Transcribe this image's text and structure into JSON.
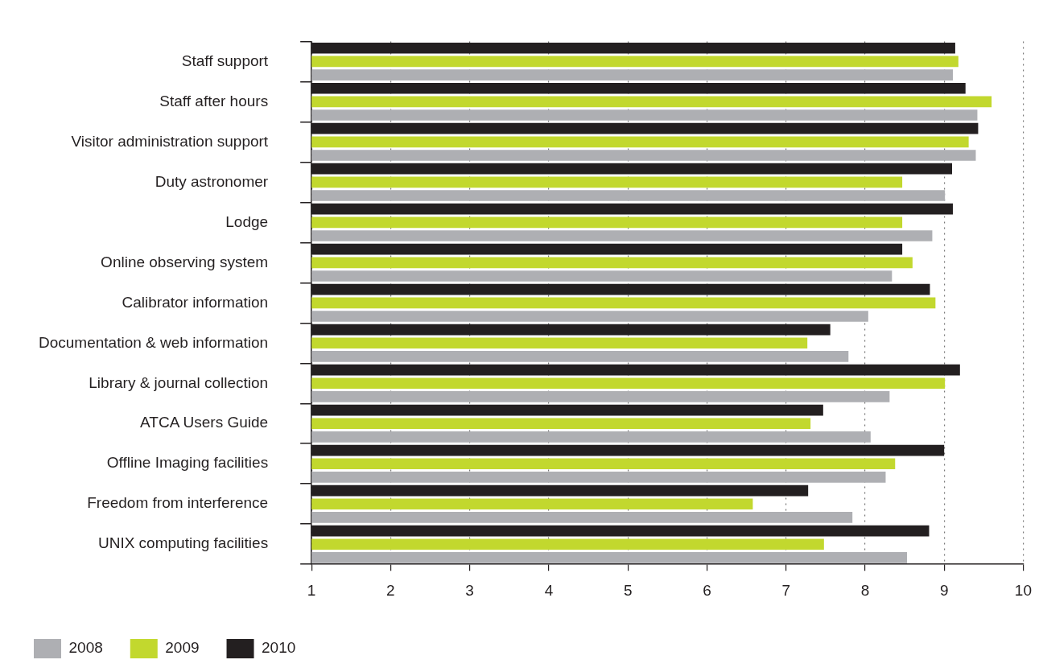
{
  "chart_data": {
    "type": "bar",
    "orientation": "horizontal",
    "categories": [
      "Staff support",
      "Staff after hours",
      "Visitor administration support",
      "Duty astronomer",
      "Lodge",
      "Online observing system",
      "Calibrator information",
      "Documentation & web information",
      "Library & journal collection",
      "ATCA Users Guide",
      "Offline Imaging facilities",
      "Freedom from interference",
      "UNIX computing facilities"
    ],
    "series": [
      {
        "name": "2008",
        "color": "#aeafb3",
        "values": [
          9.11,
          9.42,
          9.4,
          9.01,
          8.85,
          8.34,
          8.04,
          7.79,
          8.31,
          8.07,
          8.26,
          7.84,
          8.53
        ]
      },
      {
        "name": "2009",
        "color": "#c2d82e",
        "values": [
          9.18,
          9.6,
          9.31,
          8.47,
          8.47,
          8.6,
          8.89,
          7.27,
          9.01,
          7.31,
          8.38,
          6.58,
          7.48
        ]
      },
      {
        "name": "2010",
        "color": "#231f20",
        "values": [
          9.14,
          9.27,
          9.43,
          9.1,
          9.11,
          8.47,
          8.82,
          7.56,
          9.2,
          7.47,
          9.0,
          7.28,
          8.81
        ]
      }
    ],
    "xlim": [
      1,
      10
    ],
    "xticks": [
      1,
      2,
      3,
      4,
      5,
      6,
      7,
      8,
      9,
      10
    ],
    "grid": "x",
    "legend": "bottom left"
  }
}
